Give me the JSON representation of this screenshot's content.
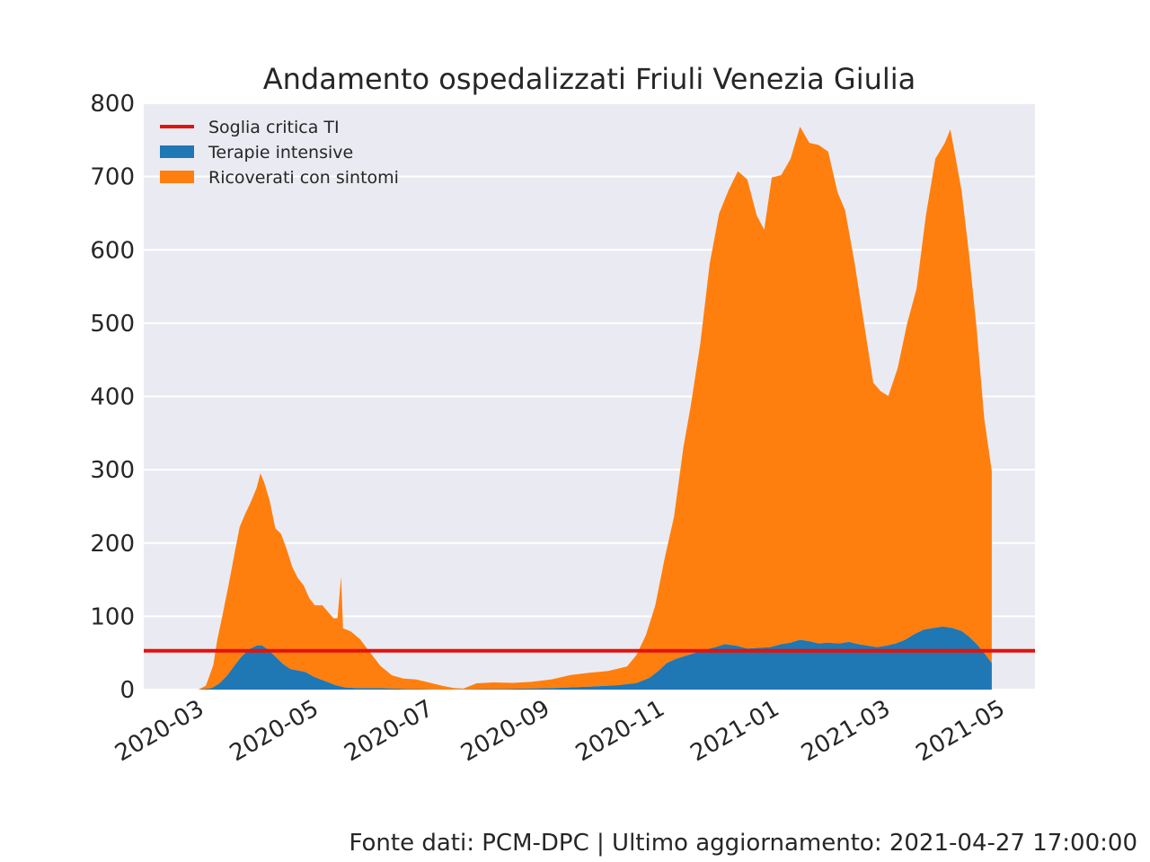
{
  "chart_data": {
    "type": "area",
    "title": "Andamento ospedalizzati Friuli Venezia Giulia",
    "xlabel": "",
    "ylabel": "",
    "ylim": [
      0,
      800
    ],
    "yticks": [
      0,
      100,
      200,
      300,
      400,
      500,
      600,
      700,
      800
    ],
    "xlim": [
      "2020-02-01",
      "2021-05-20"
    ],
    "xticks": [
      "2020-03",
      "2020-05",
      "2020-07",
      "2020-09",
      "2020-11",
      "2021-01",
      "2021-03",
      "2021-05"
    ],
    "grid": true,
    "stacked": true,
    "legend_position": "top-left",
    "threshold": {
      "name": "Soglia critica TI",
      "value": 53,
      "color": "#e3120b"
    },
    "series": [
      {
        "name": "Terapie intensive",
        "color": "#1f77b4",
        "points": [
          [
            "2020-02-24",
            0
          ],
          [
            "2020-03-01",
            0
          ],
          [
            "2020-03-08",
            2
          ],
          [
            "2020-03-12",
            8
          ],
          [
            "2020-03-16",
            18
          ],
          [
            "2020-03-20",
            32
          ],
          [
            "2020-03-24",
            45
          ],
          [
            "2020-03-28",
            55
          ],
          [
            "2020-04-01",
            60
          ],
          [
            "2020-04-04",
            60
          ],
          [
            "2020-04-07",
            55
          ],
          [
            "2020-04-11",
            45
          ],
          [
            "2020-04-15",
            35
          ],
          [
            "2020-04-19",
            28
          ],
          [
            "2020-04-23",
            26
          ],
          [
            "2020-04-27",
            24
          ],
          [
            "2020-05-01",
            18
          ],
          [
            "2020-05-05",
            14
          ],
          [
            "2020-05-09",
            10
          ],
          [
            "2020-05-13",
            6
          ],
          [
            "2020-05-18",
            3
          ],
          [
            "2020-05-25",
            2
          ],
          [
            "2020-06-05",
            2
          ],
          [
            "2020-06-20",
            1
          ],
          [
            "2020-07-10",
            0
          ],
          [
            "2020-08-10",
            1
          ],
          [
            "2020-09-05",
            2
          ],
          [
            "2020-09-25",
            4
          ],
          [
            "2020-10-10",
            6
          ],
          [
            "2020-10-20",
            9
          ],
          [
            "2020-10-27",
            16
          ],
          [
            "2020-11-01",
            26
          ],
          [
            "2020-11-05",
            36
          ],
          [
            "2020-11-10",
            42
          ],
          [
            "2020-11-15",
            46
          ],
          [
            "2020-11-20",
            50
          ],
          [
            "2020-11-25",
            54
          ],
          [
            "2020-12-01",
            58
          ],
          [
            "2020-12-06",
            62
          ],
          [
            "2020-12-12",
            60
          ],
          [
            "2020-12-18",
            56
          ],
          [
            "2020-12-24",
            57
          ],
          [
            "2020-12-30",
            58
          ],
          [
            "2021-01-05",
            62
          ],
          [
            "2021-01-10",
            64
          ],
          [
            "2021-01-15",
            68
          ],
          [
            "2021-01-20",
            66
          ],
          [
            "2021-01-25",
            63
          ],
          [
            "2021-01-30",
            64
          ],
          [
            "2021-02-05",
            63
          ],
          [
            "2021-02-10",
            65
          ],
          [
            "2021-02-15",
            62
          ],
          [
            "2021-02-20",
            60
          ],
          [
            "2021-02-25",
            58
          ],
          [
            "2021-03-02",
            60
          ],
          [
            "2021-03-07",
            63
          ],
          [
            "2021-03-12",
            68
          ],
          [
            "2021-03-17",
            76
          ],
          [
            "2021-03-22",
            82
          ],
          [
            "2021-03-27",
            84
          ],
          [
            "2021-04-01",
            86
          ],
          [
            "2021-04-06",
            84
          ],
          [
            "2021-04-11",
            80
          ],
          [
            "2021-04-15",
            72
          ],
          [
            "2021-04-19",
            62
          ],
          [
            "2021-04-23",
            50
          ],
          [
            "2021-04-27",
            36
          ]
        ]
      },
      {
        "name": "Ricoverati con sintomi",
        "color": "#ff7f0e",
        "points": [
          [
            "2020-02-24",
            0
          ],
          [
            "2020-03-01",
            0
          ],
          [
            "2020-03-05",
            4
          ],
          [
            "2020-03-09",
            30
          ],
          [
            "2020-03-11",
            60
          ],
          [
            "2020-03-14",
            90
          ],
          [
            "2020-03-17",
            120
          ],
          [
            "2020-03-20",
            150
          ],
          [
            "2020-03-23",
            180
          ],
          [
            "2020-03-26",
            190
          ],
          [
            "2020-03-29",
            200
          ],
          [
            "2020-04-01",
            215
          ],
          [
            "2020-04-03",
            235
          ],
          [
            "2020-04-05",
            225
          ],
          [
            "2020-04-08",
            205
          ],
          [
            "2020-04-11",
            175
          ],
          [
            "2020-04-14",
            175
          ],
          [
            "2020-04-17",
            160
          ],
          [
            "2020-04-20",
            140
          ],
          [
            "2020-04-23",
            126
          ],
          [
            "2020-04-26",
            118
          ],
          [
            "2020-04-29",
            104
          ],
          [
            "2020-05-02",
            98
          ],
          [
            "2020-05-06",
            102
          ],
          [
            "2020-05-09",
            96
          ],
          [
            "2020-05-12",
            90
          ],
          [
            "2020-05-14",
            92
          ],
          [
            "2020-05-16",
            150
          ],
          [
            "2020-05-17",
            80
          ],
          [
            "2020-05-21",
            77
          ],
          [
            "2020-05-26",
            67
          ],
          [
            "2020-05-31",
            50
          ],
          [
            "2020-06-06",
            30
          ],
          [
            "2020-06-12",
            18
          ],
          [
            "2020-06-18",
            14
          ],
          [
            "2020-06-25",
            13
          ],
          [
            "2020-07-02",
            9
          ],
          [
            "2020-07-09",
            5
          ],
          [
            "2020-07-15",
            2
          ],
          [
            "2020-07-20",
            1
          ],
          [
            "2020-07-27",
            8
          ],
          [
            "2020-08-05",
            9
          ],
          [
            "2020-08-15",
            8
          ],
          [
            "2020-08-25",
            9
          ],
          [
            "2020-09-05",
            12
          ],
          [
            "2020-09-15",
            17
          ],
          [
            "2020-09-25",
            19
          ],
          [
            "2020-10-05",
            20
          ],
          [
            "2020-10-15",
            24
          ],
          [
            "2020-10-20",
            38
          ],
          [
            "2020-10-25",
            60
          ],
          [
            "2020-10-30",
            92
          ],
          [
            "2020-11-04",
            145
          ],
          [
            "2020-11-09",
            195
          ],
          [
            "2020-11-14",
            285
          ],
          [
            "2020-11-18",
            340
          ],
          [
            "2020-11-23",
            420
          ],
          [
            "2020-11-28",
            525
          ],
          [
            "2020-12-03",
            590
          ],
          [
            "2020-12-08",
            620
          ],
          [
            "2020-12-13",
            648
          ],
          [
            "2020-12-18",
            640
          ],
          [
            "2020-12-23",
            590
          ],
          [
            "2020-12-27",
            570
          ],
          [
            "2020-12-31",
            640
          ],
          [
            "2021-01-05",
            640
          ],
          [
            "2021-01-10",
            660
          ],
          [
            "2021-01-15",
            700
          ],
          [
            "2021-01-20",
            680
          ],
          [
            "2021-01-25",
            680
          ],
          [
            "2021-01-30",
            670
          ],
          [
            "2021-02-04",
            615
          ],
          [
            "2021-02-08",
            590
          ],
          [
            "2021-02-13",
            520
          ],
          [
            "2021-02-18",
            440
          ],
          [
            "2021-02-23",
            360
          ],
          [
            "2021-02-27",
            348
          ],
          [
            "2021-03-03",
            340
          ],
          [
            "2021-03-08",
            375
          ],
          [
            "2021-03-13",
            430
          ],
          [
            "2021-03-18",
            470
          ],
          [
            "2021-03-23",
            565
          ],
          [
            "2021-03-28",
            640
          ],
          [
            "2021-04-02",
            660
          ],
          [
            "2021-04-05",
            680
          ],
          [
            "2021-04-08",
            640
          ],
          [
            "2021-04-11",
            600
          ],
          [
            "2021-04-15",
            520
          ],
          [
            "2021-04-19",
            430
          ],
          [
            "2021-04-23",
            320
          ],
          [
            "2021-04-27",
            262
          ]
        ]
      }
    ]
  },
  "footer": "Fonte dati: PCM-DPC | Ultimo aggiornamento: 2021-04-27 17:00:00"
}
